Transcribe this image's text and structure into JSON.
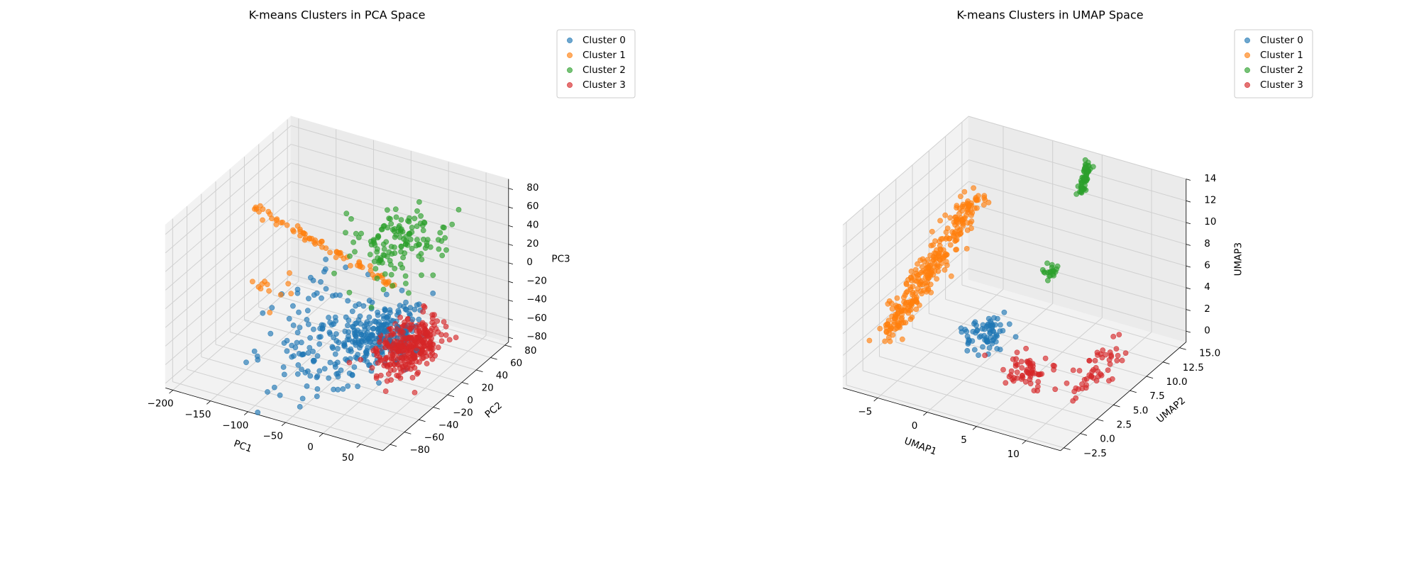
{
  "colors": {
    "Cluster 0": "#1f77b4",
    "Cluster 1": "#ff7f0e",
    "Cluster 2": "#2ca02c",
    "Cluster 3": "#d62728"
  },
  "chart_data": [
    {
      "type": "scatter",
      "projection": "3d",
      "title": "K-means Clusters in PCA Space",
      "xlabel": "PC1",
      "ylabel": "PC2",
      "zlabel": "PC3",
      "xlim": [
        -210,
        80
      ],
      "ylim": [
        -90,
        85
      ],
      "zlim": [
        -85,
        90
      ],
      "xticks": [
        -200,
        -150,
        -100,
        -50,
        0,
        50
      ],
      "yticks": [
        -80,
        -60,
        -40,
        -20,
        0,
        20,
        40,
        60,
        80
      ],
      "zticks": [
        -80,
        -60,
        -40,
        -20,
        0,
        20,
        40,
        60,
        80
      ],
      "legend": {
        "position": "top-right",
        "entries": [
          "Cluster 0",
          "Cluster 1",
          "Cluster 2",
          "Cluster 3"
        ]
      },
      "series": [
        {
          "name": "Cluster 0",
          "clusters": [
            {
              "center": [
                -5,
                -5,
                -35
              ],
              "spread": [
                22,
                18,
                12
              ],
              "count": 220
            },
            {
              "center": [
                -60,
                -30,
                -55
              ],
              "spread": [
                35,
                25,
                14
              ],
              "count": 110
            },
            {
              "center": [
                -100,
                10,
                -20
              ],
              "spread": [
                25,
                25,
                12
              ],
              "count": 25
            }
          ]
        },
        {
          "name": "Cluster 1",
          "line": {
            "from": [
              -205,
              30,
              30
            ],
            "to": [
              -20,
              30,
              -10
            ],
            "count": 70,
            "jitter": 2
          },
          "clusters": [
            {
              "center": [
                -140,
                -20,
                -10
              ],
              "spread": [
                12,
                10,
                8
              ],
              "count": 12
            }
          ]
        },
        {
          "name": "Cluster 2",
          "clusters": [
            {
              "center": [
                -20,
                35,
                30
              ],
              "spread": [
                25,
                20,
                20
              ],
              "count": 140
            }
          ]
        },
        {
          "name": "Cluster 3",
          "clusters": [
            {
              "center": [
                40,
                -10,
                -35
              ],
              "spread": [
                14,
                18,
                10
              ],
              "count": 320
            }
          ]
        }
      ]
    },
    {
      "type": "scatter",
      "projection": "3d",
      "title": "K-means Clusters in UMAP Space",
      "xlabel": "UMAP1",
      "ylabel": "UMAP2",
      "zlabel": "UMAP3",
      "xlim": [
        -8.5,
        13.5
      ],
      "ylim": [
        -3,
        16
      ],
      "zlim": [
        -1,
        14
      ],
      "xticks": [
        -5,
        0,
        5,
        10
      ],
      "yticks": [
        -2.5,
        0.0,
        2.5,
        5.0,
        7.5,
        10.0,
        12.5,
        15.0
      ],
      "ytick_labels": [
        "−2.5",
        "0.0",
        "2.5",
        "5.0",
        "7.5",
        "10.0",
        "12.5",
        "15.0"
      ],
      "zticks": [
        0,
        2,
        4,
        6,
        8,
        10,
        12,
        14
      ],
      "legend": {
        "position": "top-right",
        "entries": [
          "Cluster 0",
          "Cluster 1",
          "Cluster 2",
          "Cluster 3"
        ]
      },
      "series": [
        {
          "name": "Cluster 0",
          "clusters": [
            {
              "center": [
                -1.0,
                7.5,
                0.5
              ],
              "spread": [
                0.8,
                1.2,
                0.6
              ],
              "count": 70
            }
          ]
        },
        {
          "name": "Cluster 1",
          "line": {
            "from": [
              -8.0,
              3.0,
              1.0
            ],
            "to": [
              -6.5,
              14.5,
              8.0
            ],
            "count": 300,
            "jitter": 0.6
          }
        },
        {
          "name": "Cluster 2",
          "line": {
            "from": [
              3.5,
              15.0,
              10.5
            ],
            "to": [
              4.3,
              15.0,
              13.5
            ],
            "count": 60,
            "jitter": 0.15
          },
          "clusters": [
            {
              "center": [
                2.5,
                12.0,
                4.8
              ],
              "spread": [
                0.3,
                0.3,
                0.4
              ],
              "count": 20
            }
          ]
        },
        {
          "name": "Cluster 3",
          "clusters": [
            {
              "center": [
                5.5,
                4.5,
                0.3
              ],
              "spread": [
                1.2,
                1.2,
                0.4
              ],
              "count": 60
            },
            {
              "center": [
                11.0,
                6.0,
                1.0
              ],
              "spread": [
                0.4,
                1.8,
                0.7
              ],
              "count": 50
            }
          ]
        }
      ]
    }
  ]
}
